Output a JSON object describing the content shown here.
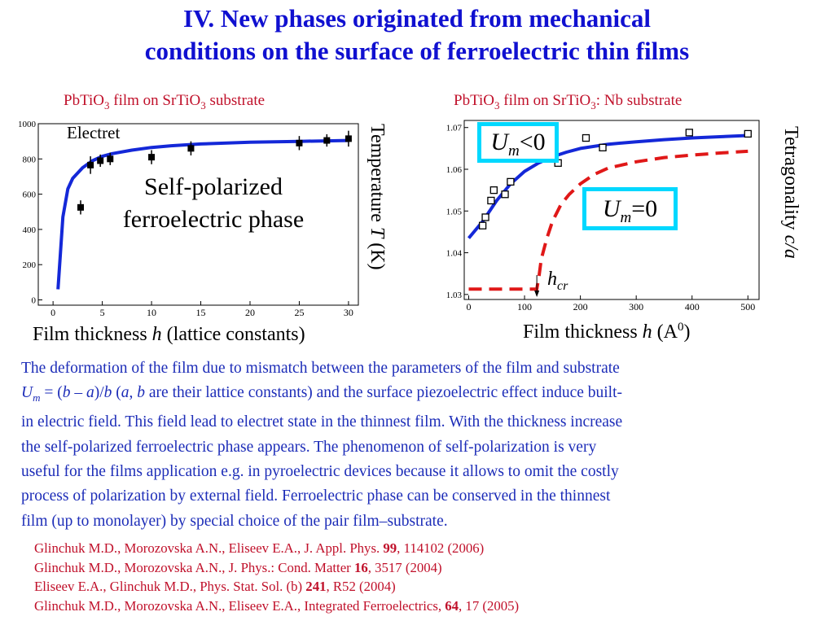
{
  "slide": {
    "title_line1": "IV. New phases originated from mechanical",
    "title_line2": "conditions on the surface of ferroelectric thin films"
  },
  "chart_left_title": {
    "pre": "PbTiO",
    "sub1": "3",
    "mid": " film on SrTiO",
    "sub2": "3",
    "post": " substrate"
  },
  "chart_right_title": {
    "pre": "PbTiO",
    "sub1": "3",
    "mid": " film on SrTiO",
    "sub2": "3",
    "post": ": Nb substrate"
  },
  "left_annotations": {
    "electret": "Electret",
    "phase_line1": "Self-polarized",
    "phase_line2": "ferroelectric phase"
  },
  "left_xlabel": {
    "text": "Film thickness ",
    "var": "h",
    "rest": " (lattice constants)"
  },
  "left_ylabel": {
    "text": "Temperature ",
    "var": "T",
    "rest": " (K)"
  },
  "right_xlabel": {
    "text": "Film thickness ",
    "var": "h",
    "rest": " (A",
    "sup": "0",
    "close": ")"
  },
  "right_ylabel": {
    "text": "Tetragonality  ",
    "var": "c/a"
  },
  "right_annotations": {
    "um_neg": {
      "var": "U",
      "sub": "m",
      "rel": "<0"
    },
    "um_zero": {
      "var": "U",
      "sub": "m",
      "rel": "=0"
    },
    "hcr": {
      "var": "h",
      "sub": "cr"
    }
  },
  "colors": {
    "title": "#1010d0",
    "body": "#1d2db8",
    "refs": "#c0102a",
    "curve": "#1428d8",
    "dashed": "#e01818",
    "box": "#00d8ff"
  },
  "body": {
    "p1": "The deformation of the film due to mismatch between the parameters of the film and substrate",
    "p2_var": "U",
    "p2_sub": "m",
    "p2_eq": " = (",
    "p2_b": "b",
    "p2_minus": " – ",
    "p2_a": "a",
    "p2_slash": ")/",
    "p2_b2": "b",
    "p2_open": " (",
    "p2_a2": "a",
    "p2_comma": ", ",
    "p2_b3": "b",
    "p2_rest": " are their lattice constants) and the surface piezoelectric effect induce built-",
    "p3": "in electric field. This field lead to electret state in the thinnest film. With the thickness increase",
    "p4": "the self-polarized ferroelectric phase appears. The phenomenon of self-polarization is very",
    "p5": "useful for the films application e.g. in pyroelectric devices because it allows to omit the costly",
    "p6": "process of polarization by external field. Ferroelectric phase can be conserved in the thinnest",
    "p7": "film (up to monolayer) by special choice of the pair film–substrate."
  },
  "references": [
    {
      "text": "Glinchuk M.D., Morozovska A.N., Eliseev E.A., J. Appl. Phys. ",
      "vol": "99",
      "rest": ", 114102 (2006)"
    },
    {
      "text": "Glinchuk M.D., Morozovska A.N., J. Phys.: Cond. Matter ",
      "vol": "16",
      "rest": ", 3517 (2004)"
    },
    {
      "text": "Eliseev E.A., Glinchuk M.D., Phys. Stat. Sol. (b) ",
      "vol": "241",
      "rest": ", R52 (2004)"
    },
    {
      "text": "Glinchuk M.D., Morozovska A.N., Eliseev E.A., Integrated Ferroelectrics, ",
      "vol": "64",
      "rest": ", 17 (2005)"
    }
  ],
  "chart_data": [
    {
      "type": "scatter",
      "xlim": [
        -1.5,
        31
      ],
      "ylim": [
        -30,
        1000
      ],
      "xticks": [
        0,
        5,
        10,
        15,
        20,
        25,
        30
      ],
      "yticks": [
        0,
        200,
        400,
        600,
        800,
        1000
      ],
      "ytick_labels": [
        "0",
        "200",
        "400",
        "600",
        "800",
        "1000"
      ],
      "points": [
        {
          "x": 2.8,
          "y": 525,
          "err": 40
        },
        {
          "x": 3.8,
          "y": 765,
          "err": 50
        },
        {
          "x": 4.8,
          "y": 790,
          "err": 35
        },
        {
          "x": 5.8,
          "y": 800,
          "err": 35
        },
        {
          "x": 10.0,
          "y": 810,
          "err": 40
        },
        {
          "x": 14.0,
          "y": 860,
          "err": 40
        },
        {
          "x": 25.0,
          "y": 890,
          "err": 40
        },
        {
          "x": 27.8,
          "y": 905,
          "err": 35
        },
        {
          "x": 30.0,
          "y": 915,
          "err": 45
        }
      ],
      "curve": {
        "x": [
          0.5,
          1.0,
          1.5,
          2,
          3,
          4,
          5,
          6,
          8,
          10,
          12,
          15,
          20,
          25,
          30
        ],
        "y": [
          60,
          470,
          630,
          690,
          750,
          790,
          815,
          830,
          850,
          865,
          875,
          885,
          895,
          900,
          905
        ]
      },
      "grid": false
    },
    {
      "type": "scatter",
      "xlim": [
        -8,
        520
      ],
      "ylim": [
        1.0288,
        1.0717
      ],
      "xticks": [
        0,
        100,
        200,
        300,
        400,
        500
      ],
      "yticks": [
        1.03,
        1.04,
        1.05,
        1.06,
        1.07
      ],
      "ytick_labels": [
        "1.03",
        "1.04",
        "1.05",
        "1.06",
        "1.07"
      ],
      "points": [
        {
          "x": 25,
          "y": 1.0465
        },
        {
          "x": 30,
          "y": 1.0485
        },
        {
          "x": 40,
          "y": 1.0525
        },
        {
          "x": 45,
          "y": 1.055
        },
        {
          "x": 65,
          "y": 1.054
        },
        {
          "x": 75,
          "y": 1.057
        },
        {
          "x": 125,
          "y": 1.0625
        },
        {
          "x": 160,
          "y": 1.0615
        },
        {
          "x": 210,
          "y": 1.0675
        },
        {
          "x": 240,
          "y": 1.0652
        },
        {
          "x": 395,
          "y": 1.0688
        },
        {
          "x": 500,
          "y": 1.0685
        }
      ],
      "series": [
        {
          "x": [
            0,
            25,
            50,
            75,
            100,
            125,
            150,
            175,
            200,
            250,
            300,
            350,
            400,
            450,
            500
          ],
          "y": [
            1.0435,
            1.0475,
            1.0525,
            1.0565,
            1.0595,
            1.0615,
            1.063,
            1.0641,
            1.065,
            1.066,
            1.0666,
            1.0671,
            1.0675,
            1.0678,
            1.0681
          ]
        },
        {
          "dashed": true,
          "x": [
            0,
            120,
            122,
            126,
            130,
            140,
            150,
            165,
            180,
            200,
            225,
            250,
            300,
            350,
            400,
            450,
            500
          ],
          "y": [
            1.0313,
            1.0313,
            1.0313,
            1.0345,
            1.0385,
            1.0435,
            1.0475,
            1.0515,
            1.054,
            1.0565,
            1.0588,
            1.0603,
            1.0618,
            1.0628,
            1.0634,
            1.0639,
            1.0643
          ]
        }
      ],
      "hcr_x": 122,
      "grid": false
    }
  ]
}
